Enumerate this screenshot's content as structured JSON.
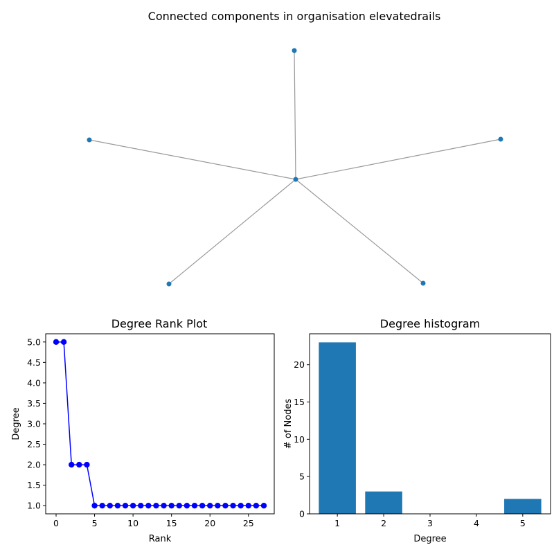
{
  "figure": {
    "title": "Connected components in organisation elevatedrails"
  },
  "colors": {
    "node": "#1f77b4",
    "edge": "#999999",
    "rank_line": "#0000ff",
    "bar": "#1f77b4"
  },
  "graph": {
    "nodes": [
      {
        "id": "center"
      },
      {
        "id": "top"
      },
      {
        "id": "left"
      },
      {
        "id": "right"
      },
      {
        "id": "bottom-left"
      },
      {
        "id": "bottom-right"
      }
    ],
    "edges": [
      [
        "center",
        "top"
      ],
      [
        "center",
        "left"
      ],
      [
        "center",
        "right"
      ],
      [
        "center",
        "bottom-left"
      ],
      [
        "center",
        "bottom-right"
      ]
    ]
  },
  "chart_data": [
    {
      "type": "line",
      "title": "Degree Rank Plot",
      "xlabel": "Rank",
      "ylabel": "Degree",
      "xlim": [
        -1.35,
        28.35
      ],
      "ylim": [
        0.8,
        5.2
      ],
      "x_ticks": [
        0,
        5,
        10,
        15,
        20,
        25
      ],
      "y_ticks": [
        1.0,
        1.5,
        2.0,
        2.5,
        3.0,
        3.5,
        4.0,
        4.5,
        5.0
      ],
      "y_tick_labels": [
        "1.0",
        "1.5",
        "2.0",
        "2.5",
        "3.0",
        "3.5",
        "4.0",
        "4.5",
        "5.0"
      ],
      "series": [
        {
          "x": [
            0,
            1,
            2,
            3,
            4,
            5,
            6,
            7,
            8,
            9,
            10,
            11,
            12,
            13,
            14,
            15,
            16,
            17,
            18,
            19,
            20,
            21,
            22,
            23,
            24,
            25,
            26,
            27
          ],
          "values": [
            5,
            5,
            2,
            2,
            2,
            1,
            1,
            1,
            1,
            1,
            1,
            1,
            1,
            1,
            1,
            1,
            1,
            1,
            1,
            1,
            1,
            1,
            1,
            1,
            1,
            1,
            1,
            1
          ]
        }
      ],
      "grid": false
    },
    {
      "type": "bar",
      "title": "Degree histogram",
      "xlabel": "Degree",
      "ylabel": "# of Nodes",
      "categories": [
        1,
        2,
        3,
        4,
        5
      ],
      "values": [
        23,
        3,
        0,
        0,
        2
      ],
      "xlim": [
        0.4,
        5.6
      ],
      "ylim": [
        0,
        24.15
      ],
      "x_ticks": [
        1,
        2,
        3,
        4,
        5
      ],
      "y_ticks": [
        0,
        5,
        10,
        15,
        20
      ],
      "grid": false
    }
  ]
}
